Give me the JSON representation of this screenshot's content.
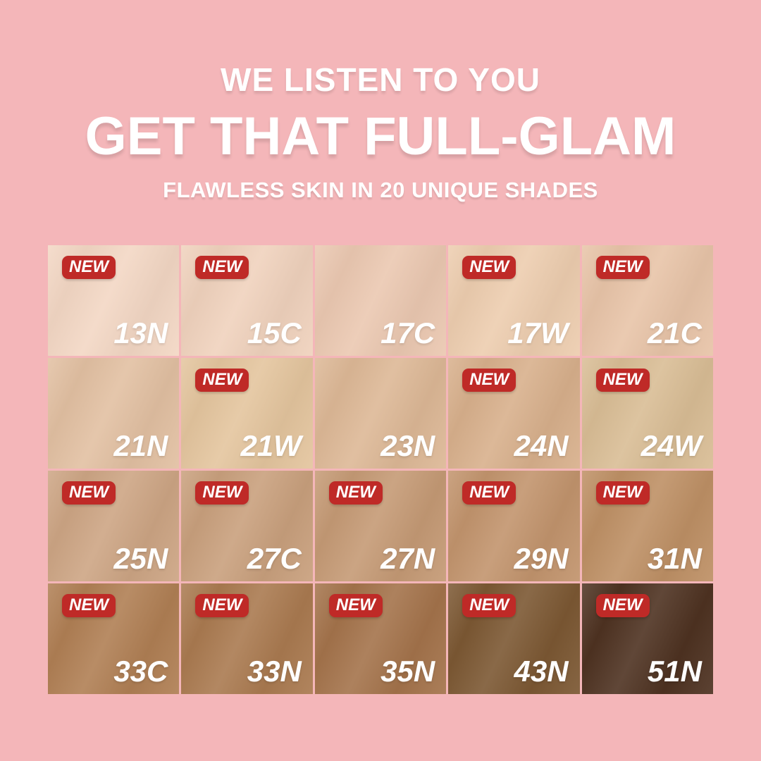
{
  "page": {
    "background_color": "#F4B6B9"
  },
  "header": {
    "line1": "WE LISTEN TO YOU",
    "line2": "GET THAT FULL-GLAM",
    "line3": "FLAWLESS SKIN IN 20 UNIQUE SHADES"
  },
  "badge": {
    "label": "NEW",
    "bg_color": "#BF2A27",
    "text_color": "#FFFFFF"
  },
  "grid": {
    "rows": 4,
    "cols": 5,
    "shade_count": 20,
    "cells": [
      {
        "shade": "13N",
        "new": true,
        "color": "#F3D7C4"
      },
      {
        "shade": "15C",
        "new": true,
        "color": "#F0D2BD"
      },
      {
        "shade": "17C",
        "new": false,
        "color": "#EBC8B1"
      },
      {
        "shade": "17W",
        "new": true,
        "color": "#EDCDAF"
      },
      {
        "shade": "21C",
        "new": true,
        "color": "#E8C4A8"
      },
      {
        "shade": "21N",
        "new": false,
        "color": "#E2C0A2"
      },
      {
        "shade": "21W",
        "new": true,
        "color": "#E4C59E"
      },
      {
        "shade": "23N",
        "new": false,
        "color": "#DDB896"
      },
      {
        "shade": "24N",
        "new": true,
        "color": "#D8B08C"
      },
      {
        "shade": "24W",
        "new": true,
        "color": "#D9BD95"
      },
      {
        "shade": "25N",
        "new": true,
        "color": "#CDA584"
      },
      {
        "shade": "27C",
        "new": true,
        "color": "#C9A07D"
      },
      {
        "shade": "27N",
        "new": true,
        "color": "#C59A75"
      },
      {
        "shade": "29N",
        "new": true,
        "color": "#C2946D"
      },
      {
        "shade": "31N",
        "new": true,
        "color": "#BE9065"
      },
      {
        "shade": "33C",
        "new": true,
        "color": "#B07F54"
      },
      {
        "shade": "33N",
        "new": true,
        "color": "#AA7A50"
      },
      {
        "shade": "35N",
        "new": true,
        "color": "#A4734B"
      },
      {
        "shade": "43N",
        "new": true,
        "color": "#7C5833"
      },
      {
        "shade": "51N",
        "new": true,
        "color": "#4E3221"
      }
    ]
  }
}
